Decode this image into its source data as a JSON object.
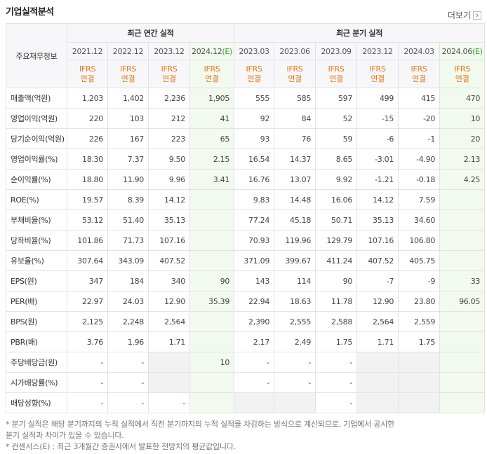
{
  "header": {
    "title": "기업실적분석",
    "more": "더보기"
  },
  "table": {
    "corner": "주요재무정보",
    "groups": [
      {
        "label": "최근 연간 실적",
        "columns": [
          {
            "period": "2021.12",
            "basis": "IFRS",
            "scope": "연결"
          },
          {
            "period": "2022.12",
            "basis": "IFRS",
            "scope": "연결"
          },
          {
            "period": "2023.12",
            "basis": "IFRS",
            "scope": "연결"
          },
          {
            "period": "2024.12",
            "estimate": "(E)",
            "basis": "IFRS",
            "scope": "연결"
          }
        ]
      },
      {
        "label": "최근 분기 실적",
        "columns": [
          {
            "period": "2023.03",
            "basis": "IFRS",
            "scope": "연결"
          },
          {
            "period": "2023.06",
            "basis": "IFRS",
            "scope": "연결"
          },
          {
            "period": "2023.09",
            "basis": "IFRS",
            "scope": "연결"
          },
          {
            "period": "2023.12",
            "basis": "IFRS",
            "scope": "연결"
          },
          {
            "period": "2024.03",
            "basis": "IFRS",
            "scope": "연결"
          },
          {
            "period": "2024.06",
            "estimate": "(E)",
            "basis": "IFRS",
            "scope": "연결"
          }
        ]
      }
    ],
    "rows": [
      {
        "label": "매출액(억원)",
        "values": [
          [
            "1,203",
            "1,402",
            "2,236",
            "1,905"
          ],
          [
            "555",
            "585",
            "597",
            "499",
            "415",
            "470"
          ]
        ]
      },
      {
        "label": "영업이익(억원)",
        "values": [
          [
            "220",
            "103",
            "212",
            "41"
          ],
          [
            "92",
            "84",
            "52",
            "-15",
            "-20",
            "10"
          ]
        ]
      },
      {
        "label": "당기순이익(억원)",
        "values": [
          [
            "226",
            "167",
            "223",
            "65"
          ],
          [
            "93",
            "76",
            "59",
            "-6",
            "-1",
            "20"
          ]
        ]
      },
      {
        "label": "영업이익률(%)",
        "values": [
          [
            "18.30",
            "7.37",
            "9.50",
            "2.15"
          ],
          [
            "16.54",
            "14.37",
            "8.65",
            "-3.01",
            "-4.90",
            "2.13"
          ]
        ]
      },
      {
        "label": "순이익률(%)",
        "values": [
          [
            "18.80",
            "11.90",
            "9.96",
            "3.41"
          ],
          [
            "16.76",
            "13.07",
            "9.92",
            "-1.21",
            "-0.18",
            "4.25"
          ]
        ]
      },
      {
        "label": "ROE(%)",
        "values": [
          [
            "19.57",
            "8.39",
            "14.12",
            null
          ],
          [
            "9.83",
            "14.48",
            "16.06",
            "14.12",
            "7.59",
            null
          ]
        ]
      },
      {
        "label": "부채비율(%)",
        "values": [
          [
            "53.12",
            "51.40",
            "35.13",
            null
          ],
          [
            "77.24",
            "45.18",
            "50.71",
            "35.13",
            "34.60",
            null
          ]
        ]
      },
      {
        "label": "당좌비율(%)",
        "values": [
          [
            "101.86",
            "71.73",
            "107.16",
            null
          ],
          [
            "70.93",
            "119.96",
            "129.79",
            "107.16",
            "106.80",
            null
          ]
        ]
      },
      {
        "label": "유보율(%)",
        "values": [
          [
            "307.64",
            "343.09",
            "407.52",
            null
          ],
          [
            "371.09",
            "399.67",
            "411.24",
            "407.52",
            "405.75",
            null
          ]
        ]
      },
      {
        "label": "EPS(원)",
        "values": [
          [
            "347",
            "184",
            "340",
            "90"
          ],
          [
            "143",
            "114",
            "90",
            "-7",
            "-9",
            "33"
          ]
        ]
      },
      {
        "label": "PER(배)",
        "values": [
          [
            "22.97",
            "24.03",
            "12.90",
            "35.39"
          ],
          [
            "22.94",
            "18.63",
            "11.78",
            "12.90",
            "23.80",
            "96.05"
          ]
        ]
      },
      {
        "label": "BPS(원)",
        "values": [
          [
            "2,125",
            "2,248",
            "2,564",
            null
          ],
          [
            "2,390",
            "2,555",
            "2,588",
            "2,564",
            "2,559",
            null
          ]
        ]
      },
      {
        "label": "PBR(배)",
        "values": [
          [
            "3.76",
            "1.96",
            "1.71",
            null
          ],
          [
            "2.17",
            "2.49",
            "1.75",
            "1.71",
            "1.75",
            null
          ]
        ]
      },
      {
        "label": "주당배당금(원)",
        "values": [
          [
            "-",
            "-",
            null,
            "10"
          ],
          [
            "-",
            "-",
            "-",
            null,
            null,
            null
          ]
        ]
      },
      {
        "label": "시가배당률(%)",
        "values": [
          [
            "-",
            "-",
            null,
            null
          ],
          [
            "-",
            "-",
            "-",
            null,
            null,
            null
          ]
        ]
      },
      {
        "label": "배당성향(%)",
        "values": [
          [
            "-",
            "-",
            "-",
            null
          ],
          [
            null,
            null,
            "-",
            null,
            null,
            null
          ]
        ]
      }
    ]
  },
  "notes": [
    "* 분기 실적은 해당 분기까지의 누적 실적에서 직전 분기까지의 누적 실적을 차감하는 방식으로 계산되므로, 기업에서 공시한 분기 실적과 차이가 있을 수 있습니다.",
    "* 컨센서스(E) : 최근 3개월간 증권사에서 발표한 전망치의 평균값입니다."
  ]
}
